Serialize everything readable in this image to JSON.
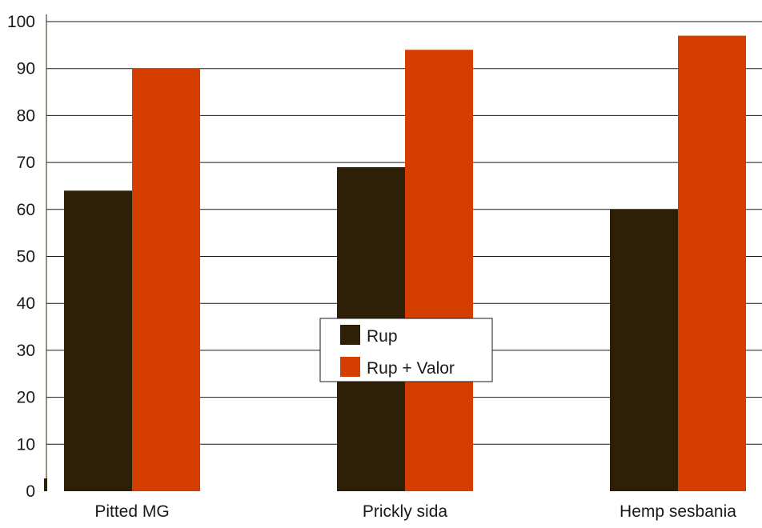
{
  "chart_data": {
    "type": "bar",
    "categories": [
      "Pitted MG",
      "Prickly sida",
      "Hemp sesbania"
    ],
    "series": [
      {
        "name": "Rup",
        "values": [
          64,
          69,
          60
        ],
        "color": "#2e2006"
      },
      {
        "name": "Rup + Valor",
        "values": [
          90,
          94,
          97
        ],
        "color": "#d43f00"
      }
    ],
    "ylim": [
      0,
      100
    ],
    "yticks": [
      0,
      10,
      20,
      30,
      40,
      50,
      60,
      70,
      80,
      90,
      100
    ],
    "grid": true,
    "legend_position": "center",
    "title": "",
    "xlabel": "",
    "ylabel": ""
  }
}
